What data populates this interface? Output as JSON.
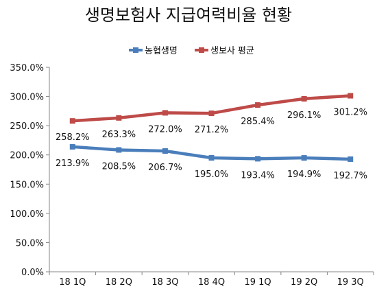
{
  "chart_data": {
    "type": "line",
    "title": "생명보험사 지급여력비율 현황",
    "categories": [
      "18 1Q",
      "18 2Q",
      "18 3Q",
      "18 4Q",
      "19 1Q",
      "19 2Q",
      "19 3Q"
    ],
    "ylim": [
      0,
      350
    ],
    "yticks": [
      "0.0%",
      "50.0%",
      "100.0%",
      "150.0%",
      "200.0%",
      "250.0%",
      "300.0%",
      "350.0%"
    ],
    "grid": false,
    "legend": "top",
    "series": [
      {
        "name": "농협생명",
        "color": "#4a7ebb",
        "values": [
          213.9,
          208.5,
          206.7,
          195.0,
          193.4,
          194.9,
          192.7
        ],
        "labels": [
          "213.9%",
          "208.5%",
          "206.7%",
          "195.0%",
          "193.4%",
          "194.9%",
          "192.7%"
        ]
      },
      {
        "name": "생보사 평균",
        "color": "#be4b48",
        "values": [
          258.2,
          263.3,
          272.0,
          271.2,
          285.4,
          296.1,
          301.2
        ],
        "labels": [
          "258.2%",
          "263.3%",
          "272.0%",
          "271.2%",
          "285.4%",
          "296.1%",
          "301.2%"
        ]
      }
    ]
  }
}
